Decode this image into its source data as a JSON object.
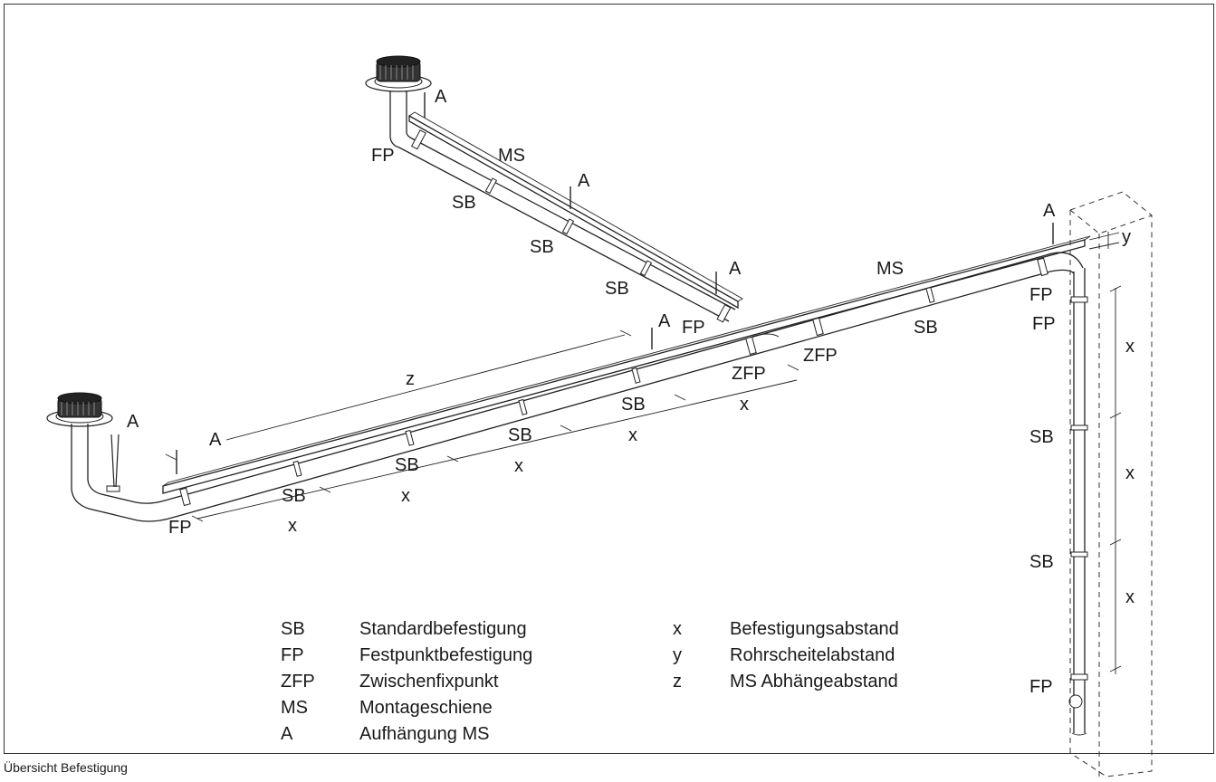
{
  "caption": "Übersicht Befestigung",
  "labels": {
    "fp": "FP",
    "sb": "SB",
    "zfp": "ZFP",
    "ms": "MS",
    "a": "A",
    "x": "x",
    "y": "y",
    "z": "z"
  },
  "legend": {
    "left": [
      {
        "code": "SB",
        "text": "Standardbefestigung"
      },
      {
        "code": "FP",
        "text": "Festpunktbefestigung"
      },
      {
        "code": "ZFP",
        "text": "Zwischenfixpunkt"
      },
      {
        "code": "MS",
        "text": "Montageschiene"
      },
      {
        "code": "A",
        "text": "Aufhängung MS"
      }
    ],
    "right": [
      {
        "code": "x",
        "text": "Befestigungsabstand"
      },
      {
        "code": "y",
        "text": "Rohrscheitelabstand"
      },
      {
        "code": "z",
        "text": "MS Abhängeabstand"
      }
    ]
  }
}
